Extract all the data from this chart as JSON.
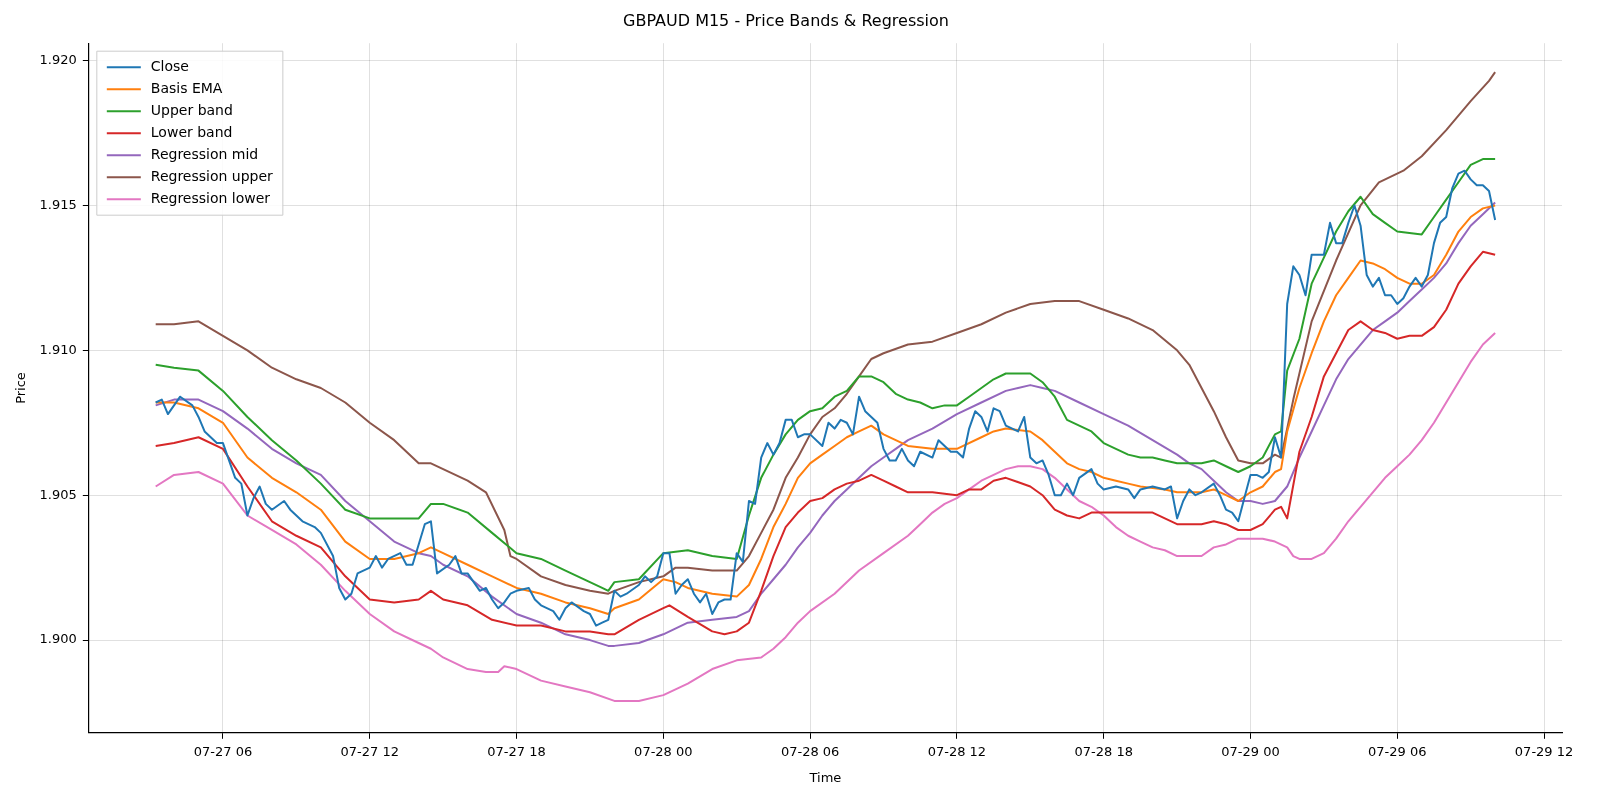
{
  "chart_data": {
    "type": "line",
    "title": "GBPAUD M15 - Price Bands & Regression",
    "xlabel": "Time",
    "ylabel": "Price",
    "xlim": [
      "--07-27T00:31",
      "--07-29T12:44"
    ],
    "ylim": [
      1.8968,
      1.9206
    ],
    "xticks": [
      {
        "value": "--07-27T06:00",
        "label": "07-27 06"
      },
      {
        "value": "--07-27T12:00",
        "label": "07-27 12"
      },
      {
        "value": "--07-27T18:00",
        "label": "07-27 18"
      },
      {
        "value": "--07-28T00:00",
        "label": "07-28 00"
      },
      {
        "value": "--07-28T06:00",
        "label": "07-28 06"
      },
      {
        "value": "--07-28T12:00",
        "label": "07-28 12"
      },
      {
        "value": "--07-28T18:00",
        "label": "07-28 18"
      },
      {
        "value": "--07-29T00:00",
        "label": "07-29 00"
      },
      {
        "value": "--07-29T06:00",
        "label": "07-29 06"
      },
      {
        "value": "--07-29T12:00",
        "label": "07-29 12"
      }
    ],
    "yticks": [
      {
        "value": 1.9,
        "label": "1.900"
      },
      {
        "value": 1.905,
        "label": "1.905"
      },
      {
        "value": 1.91,
        "label": "1.910"
      },
      {
        "value": 1.915,
        "label": "1.915"
      },
      {
        "value": 1.92,
        "label": "1.920"
      }
    ],
    "grid": true,
    "legend": "top left",
    "marker": "none",
    "line_style": "solid",
    "series": [
      {
        "name": "Close",
        "color": "#1f77b4",
        "x": [
          "--07-27T03:15",
          "--07-27T03:30",
          "--07-27T03:45",
          "--07-27T04:15",
          "--07-27T04:45",
          "--07-27T05:00",
          "--07-27T05:15",
          "--07-27T05:45",
          "--07-27T06:00",
          "--07-27T06:30",
          "--07-27T06:45",
          "--07-27T07:00",
          "--07-27T07:15",
          "--07-27T07:30",
          "--07-27T07:45",
          "--07-27T08:00",
          "--07-27T08:30",
          "--07-27T08:45",
          "--07-27T09:15",
          "--07-27T09:45",
          "--07-27T10:00",
          "--07-27T10:30",
          "--07-27T10:45",
          "--07-27T11:00",
          "--07-27T11:15",
          "--07-27T11:30",
          "--07-27T12:00",
          "--07-27T12:15",
          "--07-27T12:30",
          "--07-27T12:45",
          "--07-27T13:15",
          "--07-27T13:30",
          "--07-27T13:45",
          "--07-27T14:15",
          "--07-27T14:30",
          "--07-27T14:45",
          "--07-27T15:15",
          "--07-27T15:30",
          "--07-27T15:45",
          "--07-27T16:00",
          "--07-27T16:30",
          "--07-27T16:45",
          "--07-27T17:00",
          "--07-27T17:15",
          "--07-27T17:30",
          "--07-27T17:45",
          "--07-27T18:00",
          "--07-27T18:30",
          "--07-27T18:45",
          "--07-27T19:00",
          "--07-27T19:30",
          "--07-27T19:45",
          "--07-27T20:00",
          "--07-27T20:15",
          "--07-27T20:45",
          "--07-27T21:00",
          "--07-27T21:15",
          "--07-27T21:30",
          "--07-27T21:45",
          "--07-27T22:00",
          "--07-27T22:15",
          "--07-27T22:30",
          "--07-27T23:00",
          "--07-27T23:15",
          "--07-27T23:30",
          "--07-27T23:45",
          "--07-28T00:00",
          "--07-28T00:15",
          "--07-28T00:30",
          "--07-28T00:45",
          "--07-28T01:00",
          "--07-28T01:15",
          "--07-28T01:30",
          "--07-28T01:45",
          "--07-28T02:00",
          "--07-28T02:15",
          "--07-28T02:30",
          "--07-28T02:45",
          "--07-28T03:00",
          "--07-28T03:15",
          "--07-28T03:30",
          "--07-28T03:45",
          "--07-28T04:00",
          "--07-28T04:15",
          "--07-28T04:30",
          "--07-28T04:45",
          "--07-28T05:00",
          "--07-28T05:15",
          "--07-28T05:30",
          "--07-28T05:45",
          "--07-28T06:00",
          "--07-28T06:30",
          "--07-28T06:45",
          "--07-28T07:00",
          "--07-28T07:15",
          "--07-28T07:30",
          "--07-28T07:45",
          "--07-28T08:00",
          "--07-28T08:15",
          "--07-28T08:45",
          "--07-28T09:00",
          "--07-28T09:15",
          "--07-28T09:30",
          "--07-28T09:45",
          "--07-28T10:00",
          "--07-28T10:15",
          "--07-28T10:30",
          "--07-28T11:00",
          "--07-28T11:15",
          "--07-28T11:30",
          "--07-28T11:45",
          "--07-28T12:00",
          "--07-28T12:15",
          "--07-28T12:30",
          "--07-28T12:45",
          "--07-28T13:00",
          "--07-28T13:15",
          "--07-28T13:30",
          "--07-28T13:45",
          "--07-28T14:00",
          "--07-28T14:30",
          "--07-28T14:45",
          "--07-28T15:00",
          "--07-28T15:15",
          "--07-28T15:30",
          "--07-28T15:45",
          "--07-28T16:00",
          "--07-28T16:15",
          "--07-28T16:30",
          "--07-28T16:45",
          "--07-28T17:00",
          "--07-28T17:30",
          "--07-28T17:45",
          "--07-28T18:00",
          "--07-28T18:30",
          "--07-28T19:00",
          "--07-28T19:15",
          "--07-28T19:30",
          "--07-28T20:00",
          "--07-28T20:30",
          "--07-28T20:45",
          "--07-28T21:00",
          "--07-28T21:15",
          "--07-28T21:30",
          "--07-28T21:45",
          "--07-28T22:00",
          "--07-28T22:30",
          "--07-28T22:45",
          "--07-28T23:00",
          "--07-28T23:15",
          "--07-28T23:30",
          "--07-28T23:45",
          "--07-29T00:00",
          "--07-29T00:15",
          "--07-29T00:30",
          "--07-29T00:45",
          "--07-29T01:00",
          "--07-29T01:15",
          "--07-29T01:30",
          "--07-29T01:45",
          "--07-29T02:00",
          "--07-29T02:15",
          "--07-29T02:30",
          "--07-29T02:45",
          "--07-29T03:00",
          "--07-29T03:15",
          "--07-29T03:30",
          "--07-29T03:45",
          "--07-29T04:00",
          "--07-29T04:15",
          "--07-29T04:30",
          "--07-29T04:45",
          "--07-29T05:00",
          "--07-29T05:15",
          "--07-29T05:30",
          "--07-29T05:45",
          "--07-29T06:00",
          "--07-29T06:15",
          "--07-29T06:30",
          "--07-29T06:45",
          "--07-29T07:00",
          "--07-29T07:15",
          "--07-29T07:30",
          "--07-29T07:45",
          "--07-29T08:00",
          "--07-29T08:15",
          "--07-29T08:30",
          "--07-29T08:45",
          "--07-29T09:00",
          "--07-29T09:15",
          "--07-29T09:30",
          "--07-29T09:45",
          "--07-29T10:00"
        ],
        "values": [
          1.9082,
          1.9083,
          1.9078,
          1.9084,
          1.9081,
          1.9077,
          1.9072,
          1.9068,
          1.9068,
          1.9056,
          1.9054,
          1.9043,
          1.9049,
          1.9053,
          1.9047,
          1.9045,
          1.9048,
          1.9045,
          1.9041,
          1.9039,
          1.9037,
          1.9029,
          1.9018,
          1.9014,
          1.9016,
          1.9023,
          1.9025,
          1.9029,
          1.9025,
          1.9028,
          1.903,
          1.9026,
          1.9026,
          1.904,
          1.9041,
          1.9023,
          1.9026,
          1.9029,
          1.9023,
          1.9023,
          1.9017,
          1.9018,
          1.9014,
          1.9011,
          1.9013,
          1.9016,
          1.9017,
          1.9018,
          1.9014,
          1.9012,
          1.901,
          1.9007,
          1.9011,
          1.9013,
          1.901,
          1.9009,
          1.9005,
          1.9006,
          1.9007,
          1.9017,
          1.9015,
          1.9016,
          1.9019,
          1.9022,
          1.902,
          1.9022,
          1.903,
          1.903,
          1.9016,
          1.9019,
          1.9021,
          1.9016,
          1.9013,
          1.9016,
          1.9009,
          1.9013,
          1.9014,
          1.9014,
          1.903,
          1.9027,
          1.9048,
          1.9047,
          1.9063,
          1.9068,
          1.9064,
          1.9068,
          1.9076,
          1.9076,
          1.907,
          1.9071,
          1.9071,
          1.9067,
          1.9075,
          1.9073,
          1.9076,
          1.9075,
          1.9071,
          1.9084,
          1.9079,
          1.9075,
          1.9066,
          1.9062,
          1.9062,
          1.9066,
          1.9062,
          1.906,
          1.9065,
          1.9063,
          1.9069,
          1.9067,
          1.9065,
          1.9065,
          1.9063,
          1.9073,
          1.9079,
          1.9077,
          1.9072,
          1.908,
          1.9079,
          1.9074,
          1.9072,
          1.9077,
          1.9063,
          1.9061,
          1.9062,
          1.9057,
          1.905,
          1.905,
          1.9054,
          1.905,
          1.9056,
          1.9059,
          1.9054,
          1.9052,
          1.9053,
          1.9052,
          1.9049,
          1.9052,
          1.9053,
          1.9052,
          1.9053,
          1.9042,
          1.9048,
          1.9052,
          1.905,
          1.9051,
          1.9054,
          1.905,
          1.9045,
          1.9044,
          1.9041,
          1.9049,
          1.9057,
          1.9057,
          1.9056,
          1.9058,
          1.907,
          1.9063,
          1.9116,
          1.9129,
          1.9126,
          1.9119,
          1.9133,
          1.9133,
          1.9133,
          1.9144,
          1.9137,
          1.9137,
          1.9144,
          1.915,
          1.9143,
          1.9126,
          1.9122,
          1.9125,
          1.9119,
          1.9119,
          1.9116,
          1.9118,
          1.9122,
          1.9125,
          1.9122,
          1.9126,
          1.9137,
          1.9144,
          1.9146,
          1.9156,
          1.9161,
          1.9162,
          1.9159,
          1.9157,
          1.9157,
          1.9155,
          1.9145
        ]
      },
      {
        "name": "Basis EMA",
        "color": "#ff7f0e",
        "x": [
          "--07-27T03:15",
          "--07-27T04:00",
          "--07-27T05:00",
          "--07-27T06:00",
          "--07-27T07:00",
          "--07-27T08:00",
          "--07-27T09:00",
          "--07-27T10:00",
          "--07-27T11:00",
          "--07-27T12:00",
          "--07-27T13:00",
          "--07-27T14:00",
          "--07-27T14:30",
          "--07-27T15:00",
          "--07-27T16:00",
          "--07-27T17:00",
          "--07-27T18:00",
          "--07-27T19:00",
          "--07-27T20:00",
          "--07-27T21:00",
          "--07-27T21:45",
          "--07-27T22:00",
          "--07-27T23:00",
          "--07-28T00:00",
          "--07-28T00:30",
          "--07-28T01:00",
          "--07-28T02:00",
          "--07-28T03:00",
          "--07-28T03:30",
          "--07-28T04:00",
          "--07-28T04:30",
          "--07-28T05:00",
          "--07-28T05:30",
          "--07-28T06:00",
          "--07-28T06:30",
          "--07-28T07:00",
          "--07-28T07:30",
          "--07-28T08:00",
          "--07-28T08:30",
          "--07-28T09:00",
          "--07-28T09:30",
          "--07-28T10:00",
          "--07-28T11:00",
          "--07-28T12:00",
          "--07-28T13:00",
          "--07-28T13:30",
          "--07-28T14:00",
          "--07-28T15:00",
          "--07-28T15:30",
          "--07-28T16:00",
          "--07-28T16:30",
          "--07-28T17:00",
          "--07-28T17:30",
          "--07-28T18:00",
          "--07-28T18:30",
          "--07-28T19:00",
          "--07-28T19:30",
          "--07-28T20:30",
          "--07-28T21:00",
          "--07-28T22:00",
          "--07-28T22:30",
          "--07-28T23:00",
          "--07-28T23:30",
          "--07-29T00:00",
          "--07-29T00:30",
          "--07-29T01:00",
          "--07-29T01:15",
          "--07-29T01:30",
          "--07-29T02:00",
          "--07-29T02:30",
          "--07-29T03:00",
          "--07-29T03:30",
          "--07-29T04:00",
          "--07-29T04:30",
          "--07-29T05:00",
          "--07-29T05:30",
          "--07-29T06:00",
          "--07-29T06:30",
          "--07-29T07:00",
          "--07-29T07:30",
          "--07-29T08:00",
          "--07-29T08:30",
          "--07-29T09:00",
          "--07-29T09:30",
          "--07-29T10:00"
        ],
        "values": [
          1.9082,
          1.9082,
          1.908,
          1.9075,
          1.9063,
          1.9056,
          1.9051,
          1.9045,
          1.9034,
          1.9028,
          1.9028,
          1.903,
          1.9032,
          1.903,
          1.9026,
          1.9022,
          1.9018,
          1.9016,
          1.9013,
          1.9011,
          1.9009,
          1.9011,
          1.9014,
          1.9021,
          1.902,
          1.9018,
          1.9016,
          1.9015,
          1.9019,
          1.9028,
          1.9039,
          1.9047,
          1.9056,
          1.9061,
          1.9064,
          1.9067,
          1.907,
          1.9072,
          1.9074,
          1.9071,
          1.9069,
          1.9067,
          1.9066,
          1.9066,
          1.907,
          1.9072,
          1.9073,
          1.9072,
          1.9069,
          1.9065,
          1.9061,
          1.9059,
          1.9058,
          1.9056,
          1.9055,
          1.9054,
          1.9053,
          1.9052,
          1.9051,
          1.9051,
          1.9052,
          1.905,
          1.9048,
          1.9051,
          1.9053,
          1.9058,
          1.9059,
          1.9072,
          1.9087,
          1.9099,
          1.911,
          1.9119,
          1.9125,
          1.9131,
          1.913,
          1.9128,
          1.9125,
          1.9123,
          1.9123,
          1.9126,
          1.9133,
          1.9141,
          1.9146,
          1.9149,
          1.915
        ]
      },
      {
        "name": "Upper band",
        "color": "#2ca02c",
        "x": [
          "--07-27T03:15",
          "--07-27T04:00",
          "--07-27T05:00",
          "--07-27T06:00",
          "--07-27T07:00",
          "--07-27T08:00",
          "--07-27T09:00",
          "--07-27T10:00",
          "--07-27T11:00",
          "--07-27T12:00",
          "--07-27T13:00",
          "--07-27T14:00",
          "--07-27T14:30",
          "--07-27T15:00",
          "--07-27T16:00",
          "--07-27T17:00",
          "--07-27T18:00",
          "--07-27T19:00",
          "--07-27T20:00",
          "--07-27T21:00",
          "--07-27T21:30",
          "--07-27T21:45",
          "--07-27T22:00",
          "--07-27T23:00",
          "--07-28T00:00",
          "--07-28T01:00",
          "--07-28T02:00",
          "--07-28T03:00",
          "--07-28T03:30",
          "--07-28T04:00",
          "--07-28T04:30",
          "--07-28T05:00",
          "--07-28T05:30",
          "--07-28T06:00",
          "--07-28T06:30",
          "--07-28T07:00",
          "--07-28T07:30",
          "--07-28T08:00",
          "--07-28T08:30",
          "--07-28T09:00",
          "--07-28T09:30",
          "--07-28T10:00",
          "--07-28T10:30",
          "--07-28T11:00",
          "--07-28T11:30",
          "--07-28T12:00",
          "--07-28T12:30",
          "--07-28T13:00",
          "--07-28T13:30",
          "--07-28T14:00",
          "--07-28T15:00",
          "--07-28T15:30",
          "--07-28T16:00",
          "--07-28T16:30",
          "--07-28T17:00",
          "--07-28T17:30",
          "--07-28T18:00",
          "--07-28T18:30",
          "--07-28T19:00",
          "--07-28T19:30",
          "--07-28T20:00",
          "--07-28T20:30",
          "--07-28T21:00",
          "--07-28T22:00",
          "--07-28T22:30",
          "--07-28T23:00",
          "--07-28T23:30",
          "--07-29T00:00",
          "--07-29T00:30",
          "--07-29T01:00",
          "--07-29T01:15",
          "--07-29T01:30",
          "--07-29T02:00",
          "--07-29T02:30",
          "--07-29T03:00",
          "--07-29T03:30",
          "--07-29T04:00",
          "--07-29T04:30",
          "--07-29T05:00",
          "--07-29T05:30",
          "--07-29T06:00",
          "--07-29T07:00",
          "--07-29T07:30",
          "--07-29T08:00",
          "--07-29T08:30",
          "--07-29T09:00",
          "--07-29T09:30",
          "--07-29T10:00"
        ],
        "values": [
          1.9095,
          1.9094,
          1.9093,
          1.9086,
          1.9077,
          1.9069,
          1.9062,
          1.9054,
          1.9045,
          1.9042,
          1.9042,
          1.9042,
          1.9047,
          1.9047,
          1.9044,
          1.9037,
          1.903,
          1.9028,
          1.9024,
          1.902,
          1.9018,
          1.9017,
          1.902,
          1.9021,
          1.903,
          1.9031,
          1.9029,
          1.9028,
          1.9043,
          1.9056,
          1.9064,
          1.9071,
          1.9076,
          1.9079,
          1.908,
          1.9084,
          1.9086,
          1.9091,
          1.9091,
          1.9089,
          1.9085,
          1.9083,
          1.9082,
          1.908,
          1.9081,
          1.9081,
          1.9084,
          1.9087,
          1.909,
          1.9092,
          1.9092,
          1.9089,
          1.9084,
          1.9076,
          1.9074,
          1.9072,
          1.9068,
          1.9066,
          1.9064,
          1.9063,
          1.9063,
          1.9062,
          1.9061,
          1.9061,
          1.9062,
          1.906,
          1.9058,
          1.906,
          1.9063,
          1.9071,
          1.9072,
          1.9093,
          1.9104,
          1.9123,
          1.9132,
          1.9141,
          1.9148,
          1.9153,
          1.9147,
          1.9144,
          1.9141,
          1.914,
          1.9146,
          1.9152,
          1.9158,
          1.9164,
          1.9166,
          1.9166
        ]
      },
      {
        "name": "Lower band",
        "color": "#d62728",
        "x": [
          "--07-27T03:15",
          "--07-27T04:00",
          "--07-27T05:00",
          "--07-27T06:00",
          "--07-27T07:00",
          "--07-27T08:00",
          "--07-27T09:00",
          "--07-27T10:00",
          "--07-27T11:00",
          "--07-27T12:00",
          "--07-27T13:00",
          "--07-27T14:00",
          "--07-27T14:30",
          "--07-27T15:00",
          "--07-27T16:00",
          "--07-27T17:00",
          "--07-27T18:00",
          "--07-27T19:00",
          "--07-27T20:00",
          "--07-27T21:00",
          "--07-27T21:45",
          "--07-27T22:00",
          "--07-27T23:00",
          "--07-28T00:00",
          "--07-28T00:15",
          "--07-28T01:00",
          "--07-28T02:00",
          "--07-28T02:30",
          "--07-28T03:00",
          "--07-28T03:30",
          "--07-28T04:00",
          "--07-28T04:30",
          "--07-28T05:00",
          "--07-28T05:30",
          "--07-28T06:00",
          "--07-28T06:30",
          "--07-28T07:00",
          "--07-28T07:30",
          "--07-28T08:00",
          "--07-28T08:30",
          "--07-28T09:00",
          "--07-28T09:30",
          "--07-28T10:00",
          "--07-28T11:00",
          "--07-28T12:00",
          "--07-28T12:30",
          "--07-28T13:00",
          "--07-28T13:30",
          "--07-28T14:00",
          "--07-28T15:00",
          "--07-28T15:30",
          "--07-28T16:00",
          "--07-28T16:30",
          "--07-28T17:00",
          "--07-28T17:30",
          "--07-28T18:00",
          "--07-28T19:00",
          "--07-28T20:00",
          "--07-28T21:00",
          "--07-28T22:00",
          "--07-28T22:30",
          "--07-28T23:00",
          "--07-28T23:30",
          "--07-29T00:00",
          "--07-29T00:30",
          "--07-29T01:00",
          "--07-29T01:15",
          "--07-29T01:30",
          "--07-29T02:00",
          "--07-29T02:30",
          "--07-29T03:00",
          "--07-29T03:30",
          "--07-29T04:00",
          "--07-29T04:30",
          "--07-29T05:00",
          "--07-29T05:30",
          "--07-29T06:00",
          "--07-29T06:30",
          "--07-29T07:00",
          "--07-29T07:30",
          "--07-29T08:00",
          "--07-29T08:30",
          "--07-29T09:00",
          "--07-29T09:30",
          "--07-29T10:00"
        ],
        "values": [
          1.9067,
          1.9068,
          1.907,
          1.9066,
          1.9053,
          1.9041,
          1.9036,
          1.9032,
          1.9022,
          1.9014,
          1.9013,
          1.9014,
          1.9017,
          1.9014,
          1.9012,
          1.9007,
          1.9005,
          1.9005,
          1.9003,
          1.9003,
          1.9002,
          1.9002,
          1.9007,
          1.9011,
          1.9012,
          1.9008,
          1.9003,
          1.9002,
          1.9003,
          1.9006,
          1.9017,
          1.9029,
          1.9039,
          1.9044,
          1.9048,
          1.9049,
          1.9052,
          1.9054,
          1.9055,
          1.9057,
          1.9055,
          1.9053,
          1.9051,
          1.9051,
          1.905,
          1.9052,
          1.9052,
          1.9055,
          1.9056,
          1.9053,
          1.905,
          1.9045,
          1.9043,
          1.9042,
          1.9044,
          1.9044,
          1.9044,
          1.9044,
          1.904,
          1.904,
          1.9041,
          1.904,
          1.9038,
          1.9038,
          1.904,
          1.9045,
          1.9046,
          1.9042,
          1.9065,
          1.9077,
          1.9091,
          1.9099,
          1.9107,
          1.911,
          1.9107,
          1.9106,
          1.9104,
          1.9105,
          1.9105,
          1.9108,
          1.9114,
          1.9123,
          1.9129,
          1.9134,
          1.9133
        ]
      },
      {
        "name": "Regression mid",
        "color": "#9467bd",
        "x": [
          "--07-27T03:15",
          "--07-27T04:00",
          "--07-27T05:00",
          "--07-27T06:00",
          "--07-27T07:00",
          "--07-27T08:00",
          "--07-27T09:00",
          "--07-27T10:00",
          "--07-27T11:00",
          "--07-27T12:00",
          "--07-27T13:00",
          "--07-27T14:00",
          "--07-27T14:30",
          "--07-27T15:00",
          "--07-27T16:00",
          "--07-27T17:00",
          "--07-27T18:00",
          "--07-27T19:00",
          "--07-27T20:00",
          "--07-27T21:00",
          "--07-27T21:45",
          "--07-27T22:00",
          "--07-27T23:00",
          "--07-28T00:00",
          "--07-28T01:00",
          "--07-28T02:00",
          "--07-28T03:00",
          "--07-28T03:30",
          "--07-28T04:00",
          "--07-28T04:30",
          "--07-28T05:00",
          "--07-28T05:30",
          "--07-28T06:00",
          "--07-28T06:30",
          "--07-28T07:00",
          "--07-28T07:30",
          "--07-28T08:00",
          "--07-28T08:30",
          "--07-28T09:00",
          "--07-28T09:30",
          "--07-28T10:00",
          "--07-28T11:00",
          "--07-28T12:00",
          "--07-28T13:00",
          "--07-28T14:00",
          "--07-28T14:30",
          "--07-28T15:00",
          "--07-28T15:30",
          "--07-28T16:00",
          "--07-28T17:00",
          "--07-28T18:00",
          "--07-28T19:00",
          "--07-28T20:00",
          "--07-28T21:00",
          "--07-28T21:30",
          "--07-28T22:00",
          "--07-28T22:30",
          "--07-28T23:00",
          "--07-28T23:30",
          "--07-29T00:00",
          "--07-29T00:30",
          "--07-29T01:00",
          "--07-29T01:30",
          "--07-29T02:00",
          "--07-29T02:30",
          "--07-29T03:00",
          "--07-29T03:30",
          "--07-29T04:00",
          "--07-29T04:30",
          "--07-29T05:00",
          "--07-29T05:30",
          "--07-29T06:00",
          "--07-29T06:30",
          "--07-29T07:00",
          "--07-29T07:30",
          "--07-29T08:00",
          "--07-29T08:30",
          "--07-29T09:00",
          "--07-29T09:30",
          "--07-29T10:00"
        ],
        "values": [
          1.9081,
          1.9083,
          1.9083,
          1.9079,
          1.9073,
          1.9066,
          1.9061,
          1.9057,
          1.9048,
          1.9041,
          1.9034,
          1.903,
          1.9029,
          1.9026,
          1.9022,
          1.9015,
          1.9009,
          1.9006,
          1.9002,
          1.9,
          1.8998,
          1.8998,
          1.8999,
          1.9002,
          1.9006,
          1.9007,
          1.9008,
          1.901,
          1.9016,
          1.9021,
          1.9026,
          1.9032,
          1.9037,
          1.9043,
          1.9048,
          1.9052,
          1.9056,
          1.906,
          1.9063,
          1.9066,
          1.9069,
          1.9073,
          1.9078,
          1.9082,
          1.9086,
          1.9087,
          1.9088,
          1.9087,
          1.9086,
          1.9082,
          1.9078,
          1.9074,
          1.9069,
          1.9064,
          1.9061,
          1.9059,
          1.9055,
          1.9051,
          1.9048,
          1.9048,
          1.9047,
          1.9048,
          1.9053,
          1.9063,
          1.9072,
          1.9081,
          1.909,
          1.9097,
          1.9102,
          1.9107,
          1.911,
          1.9113,
          1.9117,
          1.9121,
          1.9125,
          1.913,
          1.9137,
          1.9143,
          1.9147,
          1.9151
        ]
      },
      {
        "name": "Regression upper",
        "color": "#8c564b",
        "x": [
          "--07-27T03:15",
          "--07-27T04:00",
          "--07-27T05:00",
          "--07-27T06:00",
          "--07-27T07:00",
          "--07-27T08:00",
          "--07-27T09:00",
          "--07-27T10:00",
          "--07-27T11:00",
          "--07-27T12:00",
          "--07-27T13:00",
          "--07-27T14:00",
          "--07-27T14:30",
          "--07-27T15:00",
          "--07-27T16:00",
          "--07-27T16:45",
          "--07-27T17:30",
          "--07-27T17:45",
          "--07-27T18:00",
          "--07-27T19:00",
          "--07-27T20:00",
          "--07-27T21:00",
          "--07-27T21:45",
          "--07-27T22:00",
          "--07-27T23:00",
          "--07-28T00:00",
          "--07-28T00:30",
          "--07-28T01:00",
          "--07-28T02:00",
          "--07-28T03:00",
          "--07-28T03:30",
          "--07-28T04:00",
          "--07-28T04:30",
          "--07-28T05:00",
          "--07-28T05:30",
          "--07-28T06:00",
          "--07-28T06:30",
          "--07-28T07:00",
          "--07-28T07:30",
          "--07-28T08:00",
          "--07-28T08:30",
          "--07-28T09:00",
          "--07-28T10:00",
          "--07-28T11:00",
          "--07-28T12:00",
          "--07-28T13:00",
          "--07-28T14:00",
          "--07-28T15:00",
          "--07-28T16:00",
          "--07-28T17:00",
          "--07-28T18:00",
          "--07-28T19:00",
          "--07-28T20:00",
          "--07-28T21:00",
          "--07-28T21:30",
          "--07-28T22:00",
          "--07-28T22:30",
          "--07-28T23:00",
          "--07-28T23:30",
          "--07-29T00:00",
          "--07-29T00:30",
          "--07-29T01:00",
          "--07-29T01:15",
          "--07-29T01:45",
          "--07-29T02:30",
          "--07-29T03:30",
          "--07-29T04:30",
          "--07-29T05:15",
          "--07-29T06:15",
          "--07-29T07:00",
          "--07-29T08:00",
          "--07-29T09:00",
          "--07-29T09:45",
          "--07-29T10:00"
        ],
        "values": [
          1.9109,
          1.9109,
          1.911,
          1.9105,
          1.91,
          1.9094,
          1.909,
          1.9087,
          1.9082,
          1.9075,
          1.9069,
          1.9061,
          1.9061,
          1.9059,
          1.9055,
          1.9051,
          1.9038,
          1.9029,
          1.9028,
          1.9022,
          1.9019,
          1.9017,
          1.9016,
          1.9017,
          1.902,
          1.9022,
          1.9025,
          1.9025,
          1.9024,
          1.9024,
          1.9029,
          1.9037,
          1.9045,
          1.9056,
          1.9063,
          1.9071,
          1.9077,
          1.908,
          1.9085,
          1.9091,
          1.9097,
          1.9099,
          1.9102,
          1.9103,
          1.9106,
          1.9109,
          1.9113,
          1.9116,
          1.9117,
          1.9117,
          1.9114,
          1.9111,
          1.9107,
          1.91,
          1.9095,
          1.9087,
          1.9079,
          1.907,
          1.9062,
          1.9061,
          1.9061,
          1.9064,
          1.9063,
          1.9083,
          1.911,
          1.9131,
          1.915,
          1.9158,
          1.9162,
          1.9167,
          1.9176,
          1.9186,
          1.9193,
          1.9196
        ]
      },
      {
        "name": "Regression lower",
        "color": "#e377c2",
        "x": [
          "--07-27T03:15",
          "--07-27T04:00",
          "--07-27T05:00",
          "--07-27T06:00",
          "--07-27T07:00",
          "--07-27T08:00",
          "--07-27T09:00",
          "--07-27T10:00",
          "--07-27T11:00",
          "--07-27T12:00",
          "--07-27T13:00",
          "--07-27T14:00",
          "--07-27T14:30",
          "--07-27T15:00",
          "--07-27T16:00",
          "--07-27T16:45",
          "--07-27T17:15",
          "--07-27T17:30",
          "--07-27T18:00",
          "--07-27T19:00",
          "--07-27T20:00",
          "--07-27T21:00",
          "--07-27T22:00",
          "--07-27T22:30",
          "--07-27T23:00",
          "--07-28T00:00",
          "--07-28T01:00",
          "--07-28T02:00",
          "--07-28T03:00",
          "--07-28T04:00",
          "--07-28T04:30",
          "--07-28T05:00",
          "--07-28T05:30",
          "--07-28T06:00",
          "--07-28T07:00",
          "--07-28T08:00",
          "--07-28T09:00",
          "--07-28T10:00",
          "--07-28T10:30",
          "--07-28T11:00",
          "--07-28T11:30",
          "--07-28T12:00",
          "--07-28T12:30",
          "--07-28T13:00",
          "--07-28T13:30",
          "--07-28T14:00",
          "--07-28T14:30",
          "--07-28T15:00",
          "--07-28T15:30",
          "--07-28T16:00",
          "--07-28T16:30",
          "--07-28T17:00",
          "--07-28T17:30",
          "--07-28T18:00",
          "--07-28T18:30",
          "--07-28T19:00",
          "--07-28T19:30",
          "--07-28T20:00",
          "--07-28T20:30",
          "--07-28T21:00",
          "--07-28T21:30",
          "--07-28T22:00",
          "--07-28T22:30",
          "--07-28T23:00",
          "--07-28T23:30",
          "--07-29T00:00",
          "--07-29T00:30",
          "--07-29T01:00",
          "--07-29T01:30",
          "--07-29T01:45",
          "--07-29T02:00",
          "--07-29T02:30",
          "--07-29T03:00",
          "--07-29T03:30",
          "--07-29T04:00",
          "--07-29T04:30",
          "--07-29T05:00",
          "--07-29T05:30",
          "--07-29T06:00",
          "--07-29T06:30",
          "--07-29T07:00",
          "--07-29T07:30",
          "--07-29T08:00",
          "--07-29T08:30",
          "--07-29T09:00",
          "--07-29T09:30",
          "--07-29T10:00"
        ],
        "values": [
          1.9053,
          1.9057,
          1.9058,
          1.9054,
          1.9043,
          1.9038,
          1.9033,
          1.9026,
          1.9017,
          1.9009,
          1.9003,
          1.8999,
          1.8997,
          1.8994,
          1.899,
          1.8989,
          1.8989,
          1.8991,
          1.899,
          1.8986,
          1.8984,
          1.8982,
          1.8979,
          1.8979,
          1.8979,
          1.8981,
          1.8985,
          1.899,
          1.8993,
          1.8994,
          1.8997,
          1.9001,
          1.9006,
          1.901,
          1.9016,
          1.9024,
          1.903,
          1.9036,
          1.904,
          1.9044,
          1.9047,
          1.9049,
          1.9052,
          1.9055,
          1.9057,
          1.9059,
          1.906,
          1.906,
          1.9059,
          1.9056,
          1.9052,
          1.9048,
          1.9046,
          1.9043,
          1.9039,
          1.9036,
          1.9034,
          1.9032,
          1.9031,
          1.9029,
          1.9029,
          1.9029,
          1.9032,
          1.9033,
          1.9035,
          1.9035,
          1.9035,
          1.9034,
          1.9032,
          1.9029,
          1.9028,
          1.9028,
          1.903,
          1.9035,
          1.9041,
          1.9046,
          1.9051,
          1.9056,
          1.906,
          1.9064,
          1.9069,
          1.9075,
          1.9082,
          1.9089,
          1.9096,
          1.9102,
          1.9106
        ]
      }
    ]
  }
}
